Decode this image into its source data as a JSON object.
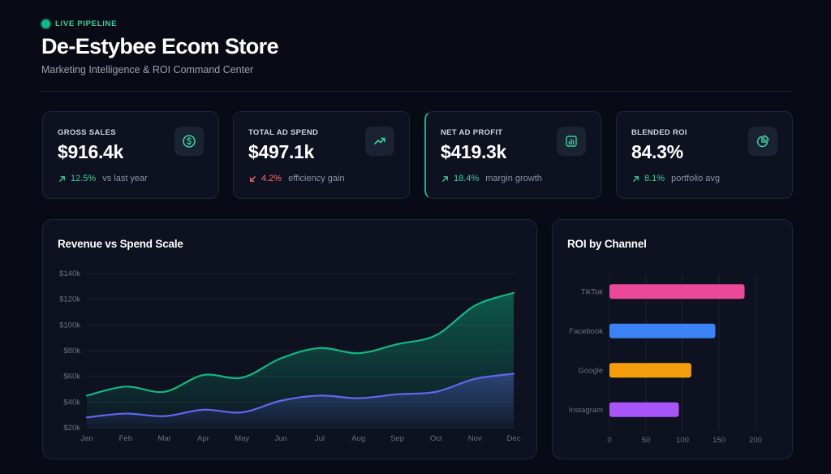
{
  "header": {
    "live_label": "LIVE PIPELINE",
    "title": "De-Estybee Ecom Store",
    "subtitle": "Marketing Intelligence & ROI Command Center"
  },
  "kpis": [
    {
      "label": "GROSS SALES",
      "value": "$916.4k",
      "delta": "12.5%",
      "direction": "up",
      "note": "vs last year",
      "icon": "dollar-icon"
    },
    {
      "label": "TOTAL AD SPEND",
      "value": "$497.1k",
      "delta": "4.2%",
      "direction": "down",
      "note": "efficiency gain",
      "icon": "trend-up-icon"
    },
    {
      "label": "NET AD PROFIT",
      "value": "$419.3k",
      "delta": "18.4%",
      "direction": "up",
      "note": "margin growth",
      "icon": "bar-chart-icon"
    },
    {
      "label": "BLENDED ROI",
      "value": "84.3%",
      "delta": "8.1%",
      "direction": "up",
      "note": "portfolio avg",
      "icon": "pie-chart-icon"
    }
  ],
  "colors": {
    "accent": "#10b981",
    "down": "#f87171",
    "revenue": "#10b981",
    "spend": "#6366f1"
  },
  "revenue_panel": {
    "title": "Revenue vs Spend Scale"
  },
  "roi_panel": {
    "title": "ROI by Channel"
  },
  "chart_data": [
    {
      "type": "area",
      "title": "Revenue vs Spend Scale",
      "categories": [
        "Jan",
        "Feb",
        "Mar",
        "Apr",
        "May",
        "Jun",
        "Jul",
        "Aug",
        "Sep",
        "Oct",
        "Nov",
        "Dec"
      ],
      "y_tick_labels": [
        "$20k",
        "$40k",
        "$60k",
        "$80k",
        "$100k",
        "$120k",
        "$140k"
      ],
      "ylim": [
        20000,
        140000
      ],
      "grid": true,
      "series": [
        {
          "values": [
            45000,
            52000,
            48000,
            61000,
            59000,
            74000,
            82000,
            78000,
            85000,
            92000,
            115000,
            125000
          ],
          "color": "#10b981"
        },
        {
          "values": [
            28000,
            31000,
            29000,
            34000,
            32000,
            41000,
            45000,
            43000,
            46000,
            48000,
            58000,
            62000
          ],
          "color": "#6366f1"
        }
      ]
    },
    {
      "type": "bar",
      "orientation": "horizontal",
      "title": "ROI by Channel",
      "categories": [
        "TikTok",
        "Facebook",
        "Google",
        "Instagram"
      ],
      "values": [
        185,
        145,
        112,
        95
      ],
      "colors": [
        "#ec4899",
        "#3b82f6",
        "#f59e0b",
        "#a855f7"
      ],
      "x_ticks": [
        0,
        50,
        100,
        150,
        200
      ],
      "xlim": [
        0,
        220
      ],
      "grid": true
    }
  ]
}
